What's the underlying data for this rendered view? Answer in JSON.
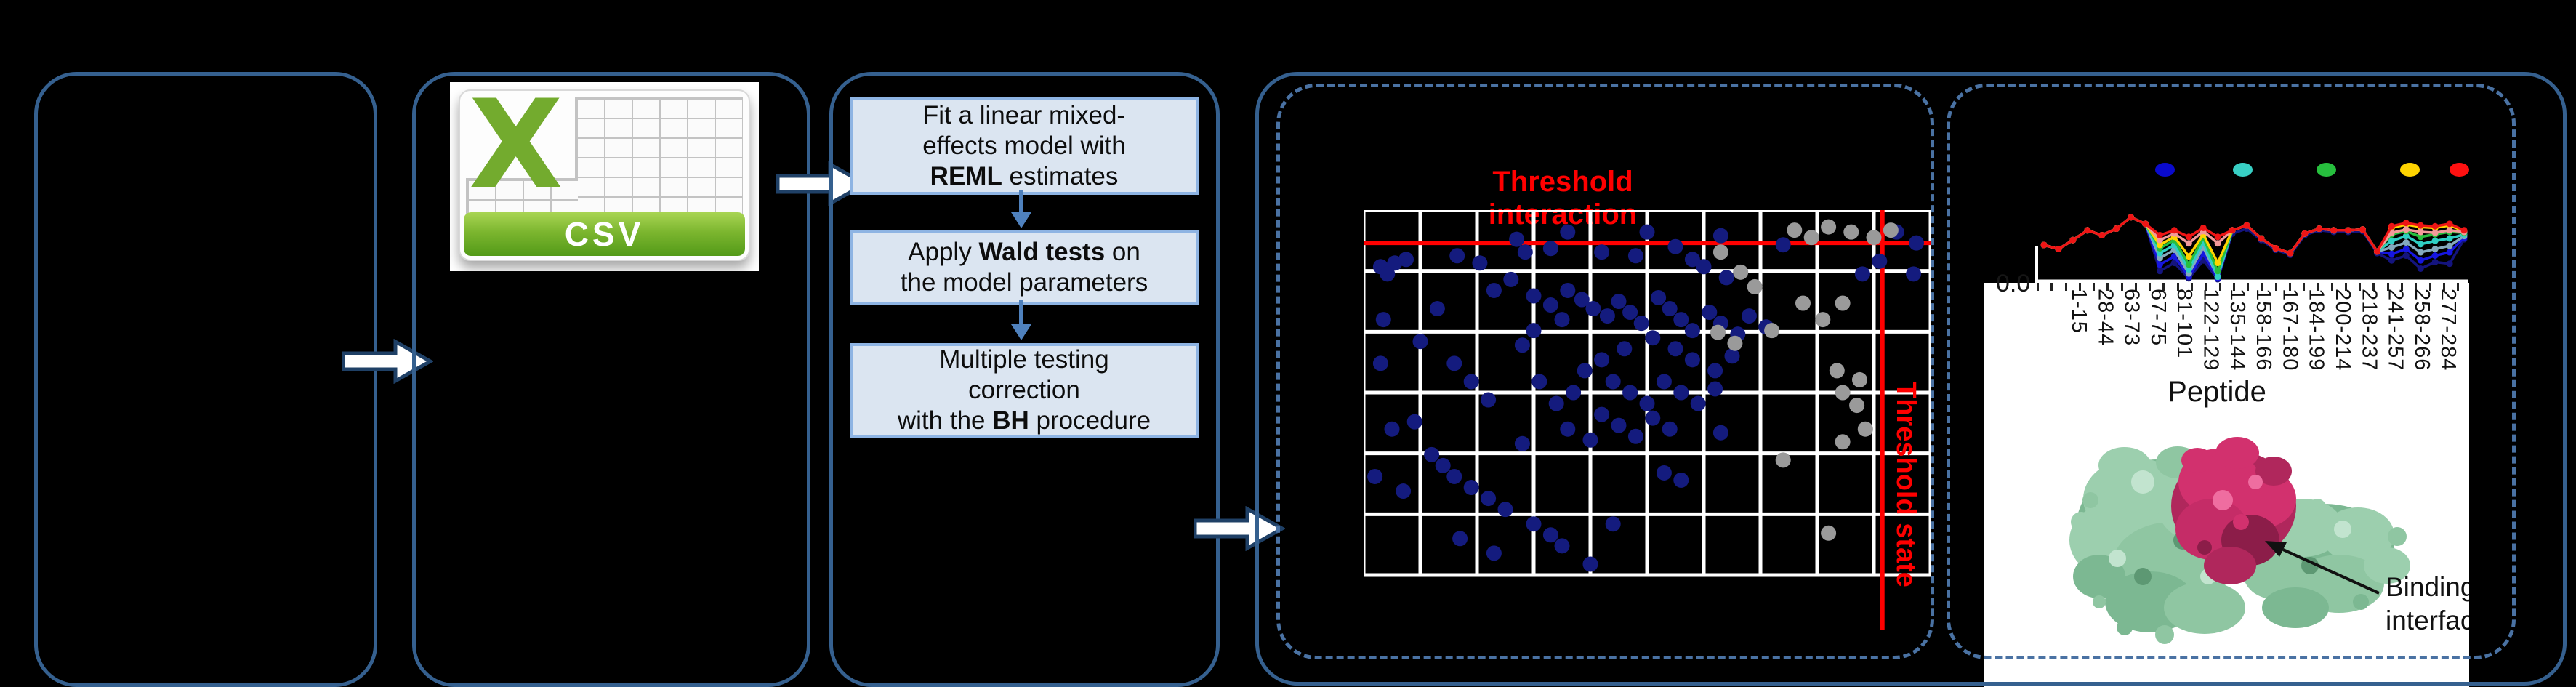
{
  "page": {
    "background": "#000000"
  },
  "colors": {
    "panel_border": "#35608f",
    "dashed_border": "#4a72a3",
    "flow_box_fill": "#dbe5f1",
    "flow_box_border": "#8eb4e3",
    "flow_arrow": "#4f81bd",
    "block_arrow_fill": "#ffffff",
    "block_arrow_stroke": "#1f4066",
    "threshold_red": "#ff0000",
    "scatter_grid": "#ffffff",
    "csv_green": "#73ab2e"
  },
  "flow": {
    "csv_icon": {
      "x_glyph": "X",
      "banner_label": "CSV"
    },
    "model_steps": [
      {
        "lines": [
          [
            {
              "t": "Fit a linear mixed-"
            }
          ],
          [
            {
              "t": "effects model with"
            }
          ],
          [
            {
              "t": "REML",
              "b": true
            },
            {
              "t": " estimates"
            }
          ]
        ]
      },
      {
        "lines": [
          [
            {
              "t": "Apply "
            },
            {
              "t": "Wald tests",
              "b": true
            },
            {
              "t": " on"
            }
          ],
          [
            {
              "t": "the model parameters"
            }
          ]
        ]
      },
      {
        "lines": [
          [
            {
              "t": "Multiple testing"
            }
          ],
          [
            {
              "t": "correction"
            }
          ],
          [
            {
              "t": "with the "
            },
            {
              "t": "BH",
              "b": true
            },
            {
              "t": " procedure"
            }
          ]
        ]
      }
    ]
  },
  "protein": {
    "binding_label_line1": "Binding",
    "binding_label_line2": "interface"
  },
  "chart_data": [
    {
      "type": "scatter",
      "title": "Threshold interaction",
      "title_color": "#ff0000",
      "threshold_state_label": "Threshold state",
      "grid": {
        "v_lines": 11,
        "h_lines": 7,
        "grid_on": true
      },
      "threshold_interaction_y_frac": 0.09,
      "threshold_state_x_frac": 0.915,
      "xlabel": "",
      "ylabel": "",
      "series": [
        {
          "name": "interaction-points",
          "color": "#141b7e",
          "points": [
            [
              0.055,
              0.145
            ],
            [
              0.075,
              0.135
            ],
            [
              0.03,
              0.155
            ],
            [
              0.042,
              0.175
            ],
            [
              0.165,
              0.125
            ],
            [
              0.205,
              0.145
            ],
            [
              0.27,
              0.08
            ],
            [
              0.285,
              0.115
            ],
            [
              0.36,
              0.06
            ],
            [
              0.33,
              0.105
            ],
            [
              0.42,
              0.115
            ],
            [
              0.5,
              0.06
            ],
            [
              0.48,
              0.125
            ],
            [
              0.55,
              0.1
            ],
            [
              0.63,
              0.07
            ],
            [
              0.74,
              0.095
            ],
            [
              0.58,
              0.135
            ],
            [
              0.6,
              0.155
            ],
            [
              0.64,
              0.185
            ],
            [
              0.94,
              0.06
            ],
            [
              0.975,
              0.09
            ],
            [
              0.91,
              0.14
            ],
            [
              0.88,
              0.175
            ],
            [
              0.97,
              0.175
            ],
            [
              0.26,
              0.19
            ],
            [
              0.23,
              0.22
            ],
            [
              0.3,
              0.235
            ],
            [
              0.33,
              0.26
            ],
            [
              0.36,
              0.22
            ],
            [
              0.385,
              0.245
            ],
            [
              0.405,
              0.27
            ],
            [
              0.43,
              0.29
            ],
            [
              0.35,
              0.3
            ],
            [
              0.3,
              0.33
            ],
            [
              0.28,
              0.37
            ],
            [
              0.45,
              0.25
            ],
            [
              0.47,
              0.28
            ],
            [
              0.49,
              0.31
            ],
            [
              0.52,
              0.24
            ],
            [
              0.54,
              0.27
            ],
            [
              0.56,
              0.3
            ],
            [
              0.58,
              0.33
            ],
            [
              0.61,
              0.28
            ],
            [
              0.63,
              0.31
            ],
            [
              0.66,
              0.34
            ],
            [
              0.68,
              0.29
            ],
            [
              0.71,
              0.32
            ],
            [
              0.51,
              0.35
            ],
            [
              0.46,
              0.38
            ],
            [
              0.42,
              0.41
            ],
            [
              0.39,
              0.44
            ],
            [
              0.55,
              0.38
            ],
            [
              0.58,
              0.41
            ],
            [
              0.62,
              0.44
            ],
            [
              0.65,
              0.4
            ],
            [
              0.44,
              0.47
            ],
            [
              0.47,
              0.5
            ],
            [
              0.5,
              0.53
            ],
            [
              0.53,
              0.47
            ],
            [
              0.56,
              0.5
            ],
            [
              0.59,
              0.53
            ],
            [
              0.62,
              0.49
            ],
            [
              0.37,
              0.5
            ],
            [
              0.34,
              0.53
            ],
            [
              0.31,
              0.47
            ],
            [
              0.13,
              0.27
            ],
            [
              0.1,
              0.36
            ],
            [
              0.16,
              0.42
            ],
            [
              0.19,
              0.47
            ],
            [
              0.22,
              0.52
            ],
            [
              0.42,
              0.56
            ],
            [
              0.45,
              0.59
            ],
            [
              0.48,
              0.62
            ],
            [
              0.51,
              0.57
            ],
            [
              0.54,
              0.6
            ],
            [
              0.4,
              0.63
            ],
            [
              0.36,
              0.6
            ],
            [
              0.09,
              0.58
            ],
            [
              0.05,
              0.6
            ],
            [
              0.12,
              0.67
            ],
            [
              0.14,
              0.7
            ],
            [
              0.16,
              0.73
            ],
            [
              0.19,
              0.76
            ],
            [
              0.22,
              0.79
            ],
            [
              0.25,
              0.82
            ],
            [
              0.02,
              0.73
            ],
            [
              0.07,
              0.77
            ],
            [
              0.3,
              0.86
            ],
            [
              0.33,
              0.89
            ],
            [
              0.35,
              0.92
            ],
            [
              0.17,
              0.9
            ],
            [
              0.23,
              0.94
            ],
            [
              0.44,
              0.86
            ],
            [
              0.4,
              0.97
            ],
            [
              0.28,
              0.64
            ],
            [
              0.03,
              0.42
            ],
            [
              0.53,
              0.72
            ],
            [
              0.56,
              0.74
            ],
            [
              0.63,
              0.61
            ],
            [
              0.035,
              0.3
            ]
          ]
        },
        {
          "name": "state-points",
          "color": "#9a9a9a",
          "points": [
            [
              0.76,
              0.055
            ],
            [
              0.79,
              0.075
            ],
            [
              0.82,
              0.046
            ],
            [
              0.86,
              0.06
            ],
            [
              0.9,
              0.075
            ],
            [
              0.93,
              0.055
            ],
            [
              0.63,
              0.115
            ],
            [
              0.665,
              0.17
            ],
            [
              0.69,
              0.21
            ],
            [
              0.775,
              0.255
            ],
            [
              0.81,
              0.3
            ],
            [
              0.625,
              0.335
            ],
            [
              0.655,
              0.365
            ],
            [
              0.72,
              0.33
            ],
            [
              0.845,
              0.255
            ],
            [
              0.835,
              0.44
            ],
            [
              0.875,
              0.465
            ],
            [
              0.845,
              0.5
            ],
            [
              0.87,
              0.535
            ],
            [
              0.885,
              0.6
            ],
            [
              0.845,
              0.635
            ],
            [
              0.74,
              0.685
            ],
            [
              0.82,
              0.885
            ]
          ]
        }
      ]
    },
    {
      "type": "line",
      "xlabel": "Peptide",
      "y_axis_tick": "0.0",
      "categories": [
        "1-15",
        "28-44",
        "63-73",
        "67-75",
        "81-101",
        "122-129",
        "135-144",
        "158-166",
        "167-180",
        "184-199",
        "200-214",
        "218-237",
        "241-257",
        "258-266",
        "277-284"
      ],
      "minor_ticks": 31,
      "legend_position": "top",
      "legend_colors": [
        "#0a0acc",
        "#38cfc4",
        "#27bf3e",
        "#ffd400",
        "#ff1111"
      ],
      "series": [
        {
          "name": "navy",
          "color": "#14147e",
          "y": [
            0.58,
            0.63,
            0.52,
            0.4,
            0.46,
            0.38,
            0.24,
            0.32,
            0.9,
            0.8,
            0.99,
            0.77,
            1.0,
            0.44,
            0.38,
            0.52,
            0.64,
            0.7,
            0.46,
            0.4,
            0.42,
            0.42,
            0.41,
            0.68,
            0.77,
            0.71,
            0.87,
            0.79,
            0.81,
            0.51
          ]
        },
        {
          "name": "blue",
          "color": "#1616e0",
          "y": [
            0.58,
            0.63,
            0.52,
            0.4,
            0.46,
            0.38,
            0.24,
            0.32,
            0.82,
            0.72,
            0.97,
            0.69,
            0.99,
            0.4,
            0.34,
            0.5,
            0.62,
            0.68,
            0.44,
            0.38,
            0.4,
            0.4,
            0.39,
            0.66,
            0.69,
            0.63,
            0.77,
            0.71,
            0.67,
            0.49
          ]
        },
        {
          "name": "steel",
          "color": "#84a9bd",
          "y": [
            0.58,
            0.63,
            0.52,
            0.4,
            0.46,
            0.38,
            0.24,
            0.32,
            0.74,
            0.64,
            0.93,
            0.61,
            0.97,
            0.4,
            0.34,
            0.5,
            0.62,
            0.68,
            0.44,
            0.38,
            0.4,
            0.4,
            0.39,
            0.66,
            0.61,
            0.55,
            0.67,
            0.63,
            0.59,
            0.47
          ]
        },
        {
          "name": "cyan",
          "color": "#2fcfc4",
          "y": [
            0.58,
            0.63,
            0.52,
            0.4,
            0.46,
            0.38,
            0.24,
            0.32,
            0.68,
            0.58,
            0.88,
            0.55,
            0.97,
            0.4,
            0.34,
            0.5,
            0.62,
            0.68,
            0.44,
            0.38,
            0.4,
            0.4,
            0.39,
            0.66,
            0.53,
            0.47,
            0.57,
            0.53,
            0.5,
            0.45
          ]
        },
        {
          "name": "green",
          "color": "#27bf3e",
          "y": [
            0.58,
            0.63,
            0.52,
            0.4,
            0.46,
            0.38,
            0.24,
            0.32,
            0.62,
            0.52,
            0.82,
            0.49,
            0.9,
            0.4,
            0.34,
            0.5,
            0.62,
            0.68,
            0.44,
            0.38,
            0.4,
            0.4,
            0.39,
            0.66,
            0.45,
            0.41,
            0.48,
            0.45,
            0.42,
            0.43
          ]
        },
        {
          "name": "yellow",
          "color": "#ffd400",
          "y": [
            0.58,
            0.63,
            0.52,
            0.4,
            0.46,
            0.38,
            0.24,
            0.32,
            0.58,
            0.48,
            0.72,
            0.45,
            0.8,
            0.4,
            0.34,
            0.5,
            0.62,
            0.68,
            0.44,
            0.38,
            0.4,
            0.4,
            0.39,
            0.66,
            0.37,
            0.33,
            0.36,
            0.37,
            0.34,
            0.41
          ]
        },
        {
          "name": "salmon",
          "color": "#f29a9a",
          "y": [
            0.58,
            0.63,
            0.52,
            0.4,
            0.46,
            0.38,
            0.24,
            0.32,
            0.52,
            0.44,
            0.56,
            0.41,
            0.56,
            0.4,
            0.34,
            0.5,
            0.62,
            0.68,
            0.44,
            0.38,
            0.4,
            0.4,
            0.39,
            0.66,
            0.43,
            0.39,
            0.42,
            0.43,
            0.4,
            0.42
          ]
        },
        {
          "name": "red",
          "color": "#ee1515",
          "y": [
            0.58,
            0.63,
            0.52,
            0.4,
            0.46,
            0.38,
            0.24,
            0.32,
            0.46,
            0.4,
            0.48,
            0.37,
            0.48,
            0.4,
            0.34,
            0.5,
            0.62,
            0.68,
            0.44,
            0.38,
            0.4,
            0.4,
            0.39,
            0.66,
            0.35,
            0.31,
            0.34,
            0.35,
            0.32,
            0.4
          ]
        }
      ]
    }
  ]
}
